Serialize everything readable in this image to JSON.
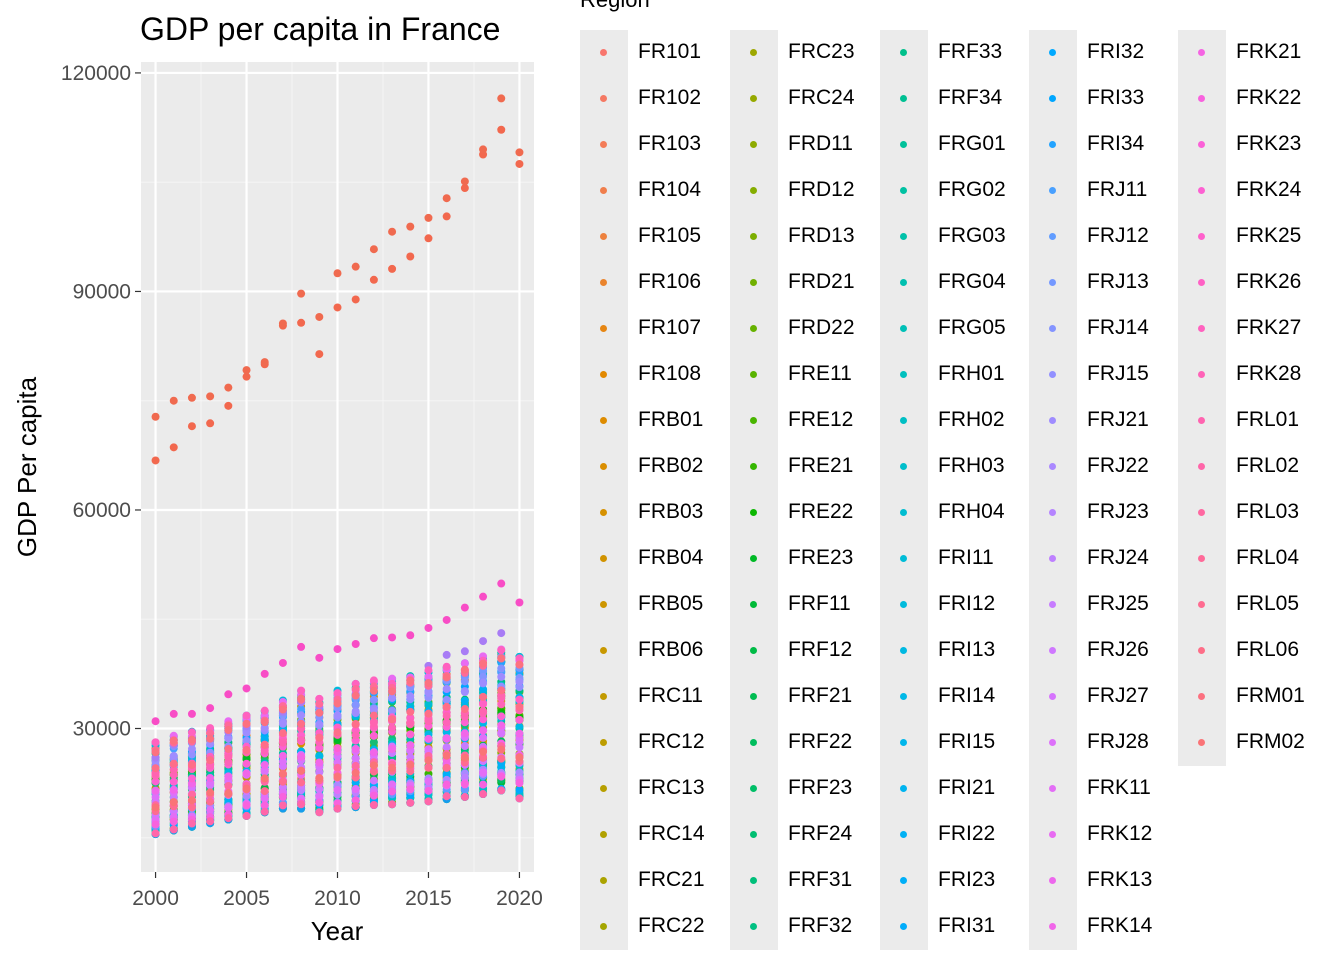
{
  "chart_data": {
    "type": "scatter",
    "title": "GDP per capita in France",
    "xlabel": "Year",
    "ylabel": "GDP Per capita",
    "xlim": [
      1999.2,
      2020.8
    ],
    "ylim": [
      10300,
      121500
    ],
    "xticks": [
      2000,
      2005,
      2010,
      2015,
      2020
    ],
    "yticks": [
      30000,
      60000,
      90000,
      120000
    ],
    "grid": true,
    "legend": {
      "title": "Region",
      "position": "right",
      "entries": [
        "FR101",
        "FR102",
        "FR103",
        "FR104",
        "FR105",
        "FR106",
        "FR107",
        "FR108",
        "FRB01",
        "FRB02",
        "FRB03",
        "FRB04",
        "FRB05",
        "FRB06",
        "FRC11",
        "FRC12",
        "FRC13",
        "FRC14",
        "FRC21",
        "FRC22",
        "FRC23",
        "FRC24",
        "FRD11",
        "FRD12",
        "FRD13",
        "FRD21",
        "FRD22",
        "FRE11",
        "FRE12",
        "FRE21",
        "FRE22",
        "FRE23",
        "FRF11",
        "FRF12",
        "FRF21",
        "FRF22",
        "FRF23",
        "FRF24",
        "FRF31",
        "FRF32",
        "FRF33",
        "FRF34",
        "FRG01",
        "FRG02",
        "FRG03",
        "FRG04",
        "FRG05",
        "FRH01",
        "FRH02",
        "FRH03",
        "FRH04",
        "FRI11",
        "FRI12",
        "FRI13",
        "FRI14",
        "FRI15",
        "FRI21",
        "FRI22",
        "FRI23",
        "FRI31",
        "FRI32",
        "FRI33",
        "FRI34",
        "FRJ11",
        "FRJ12",
        "FRJ13",
        "FRJ14",
        "FRJ15",
        "FRJ21",
        "FRJ22",
        "FRJ23",
        "FRJ24",
        "FRJ25",
        "FRJ26",
        "FRJ27",
        "FRJ28",
        "FRK11",
        "FRK12",
        "FRK13",
        "FRK14",
        "FRK21",
        "FRK22",
        "FRK23",
        "FRK24",
        "FRK25",
        "FRK26",
        "FRK27",
        "FRK28",
        "FRL01",
        "FRL02",
        "FRL03",
        "FRL04",
        "FRL05",
        "FRL06",
        "FRM01",
        "FRM02"
      ]
    },
    "x": [
      2000,
      2001,
      2002,
      2003,
      2004,
      2005,
      2006,
      2007,
      2008,
      2009,
      2010,
      2011,
      2012,
      2013,
      2014,
      2015,
      2016,
      2017,
      2018,
      2019,
      2020
    ],
    "series": [
      {
        "name": "FR102",
        "color": "#F06A4F",
        "y": [
          72800,
          75000,
          75400,
          75600,
          76800,
          79200,
          80300,
          85600,
          89700,
          86500,
          92500,
          93400,
          95800,
          98200,
          98900,
          100100,
          102800,
          105100,
          109500,
          116500,
          109100
        ]
      },
      {
        "name": "FR101",
        "color": "#F2684E",
        "y": [
          66800,
          68600,
          71500,
          71900,
          74300,
          78300,
          80000,
          85300,
          85700,
          81400,
          87800,
          88900,
          91600,
          93100,
          94800,
          97300,
          100300,
          104200,
          108800,
          112200,
          107500
        ]
      },
      {
        "name": "FRK23",
        "color": "#F84DC6",
        "y": [
          31000,
          32000,
          32000,
          32800,
          34700,
          35500,
          37500,
          39000,
          41200,
          39700,
          40900,
          41600,
          42400,
          42500,
          42800,
          43800,
          44900,
          46600,
          48100,
          49900,
          47300
        ]
      },
      {
        "name": "FRJ23",
        "color": "#A87CF5",
        "y": [
          26000,
          27800,
          28300,
          28600,
          29500,
          30300,
          31200,
          32300,
          33600,
          33000,
          34100,
          34800,
          35600,
          36200,
          37000,
          38600,
          40100,
          40600,
          42000,
          43100,
          39300
        ]
      },
      {
        "name": "FR107",
        "color": "#E57A1B",
        "y": [
          25000,
          26000,
          26500,
          27000,
          28000,
          29000,
          30000,
          31000,
          32000,
          31500,
          32600,
          33200,
          33800,
          34300,
          34900,
          35900,
          36900,
          37900,
          39000,
          40100,
          37500
        ]
      },
      {
        "name": "FRE11",
        "color": "#47A30B",
        "y": [
          24600,
          25000,
          25400,
          26000,
          26500,
          27000,
          27500,
          28000,
          28400,
          27900,
          28600,
          29100,
          29500,
          29800,
          30200,
          30700,
          31200,
          31700,
          32300,
          32800,
          31200
        ]
      },
      {
        "name": "FRG01",
        "color": "#17BC72",
        "y": [
          22500,
          23000,
          23500,
          24000,
          24500,
          25000,
          25600,
          26200,
          26800,
          26300,
          27000,
          27600,
          28100,
          28600,
          29000,
          29500,
          30000,
          30500,
          31100,
          31600,
          30000
        ]
      },
      {
        "name": "FRI31",
        "color": "#169DED",
        "y": [
          15500,
          16000,
          16500,
          17000,
          17500,
          18000,
          18500,
          19000,
          19000,
          18500,
          19000,
          19200,
          19500,
          19600,
          19800,
          20000,
          20300,
          20600,
          21000,
          21500,
          20400
        ]
      }
    ],
    "clusters": {
      "note": "lower group of regions, each year spans roughly these bounds",
      "min": [
        15500,
        16000,
        16500,
        17000,
        17500,
        18000,
        18500,
        19000,
        19000,
        18500,
        19000,
        19200,
        19500,
        19600,
        19800,
        20000,
        20300,
        20600,
        21000,
        21500,
        20400
      ],
      "max": [
        29500,
        30500,
        31000,
        31500,
        32500,
        33300,
        34000,
        35500,
        37000,
        35800,
        37000,
        38000,
        38500,
        39000,
        39500,
        40000,
        40500,
        41000,
        42000,
        43000,
        42000
      ]
    }
  }
}
